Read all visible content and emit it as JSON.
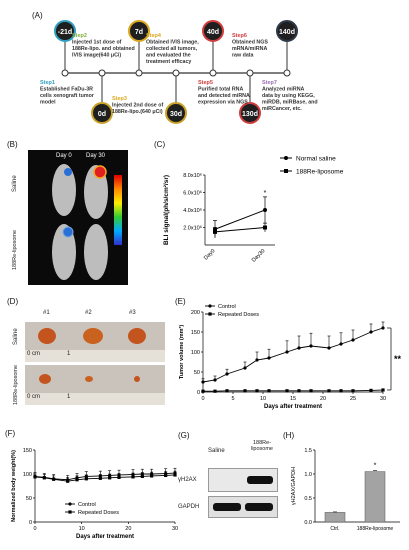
{
  "panel_labels": {
    "a": "(A)",
    "b": "(B)",
    "c": "(C)",
    "d": "(D)",
    "e": "(E)",
    "f": "(F)",
    "g": "(G)",
    "h": "(H)"
  },
  "timeline": {
    "milestones": [
      {
        "day": "-21d",
        "color": "#2f9fbf",
        "pos": "top"
      },
      {
        "day": "0d",
        "color": "#c9a227",
        "pos": "bottom"
      },
      {
        "day": "7d",
        "color": "#d9a820",
        "pos": "top"
      },
      {
        "day": "30d",
        "color": "#c9a227",
        "pos": "bottom"
      },
      {
        "day": "40d",
        "color": "#cf3d3d",
        "pos": "top"
      },
      {
        "day": "130d",
        "color": "#cf3d3d",
        "pos": "bottom"
      },
      {
        "day": "140d",
        "color": "#2f3a4a",
        "pos": "top"
      }
    ],
    "steps": [
      {
        "title": "Step1",
        "color": "#2f9fbf",
        "lines": [
          "Established FaDu-3R",
          "cells xenograft tumor",
          "model"
        ]
      },
      {
        "title": "Step2",
        "color": "#7fae3a",
        "lines": [
          "Injected 1st dose of",
          "188Re-lipo. and obtained",
          "IVIS image(640 μCi)"
        ]
      },
      {
        "title": "Step3",
        "color": "#d9a820",
        "lines": [
          "Injected 2nd dose of",
          "188Re-lipo.(640 μCi)"
        ]
      },
      {
        "title": "Step4",
        "color": "#d9a820",
        "lines": [
          "Obtained IVIS image,",
          "collected all tumors,",
          "and evaluated the",
          "treatment efficacy"
        ]
      },
      {
        "title": "Step5",
        "color": "#cf3d3d",
        "lines": [
          "Purified total RNA",
          "and detected miRNA",
          "expression via NGS"
        ]
      },
      {
        "title": "Step6",
        "color": "#cf3d3d",
        "lines": [
          "Obtained NGS",
          "mRNA/miRNA",
          "raw data"
        ]
      },
      {
        "title": "Step7",
        "color": "#9a6fb0",
        "lines": [
          "Analyzed miRNA",
          "data by using  KEGG,",
          "miRDB, miRBase, and",
          "miRCancer, etc."
        ]
      }
    ]
  },
  "panel_b": {
    "day0": "Day 0",
    "day30": "Day 30",
    "row1": "Saline",
    "row2": "188Re-liposome"
  },
  "panel_c": {
    "ylabel": "BLI signal(ph/s/cm²/sr)",
    "yticks": [
      "2.0x10⁶",
      "4.0x10⁶",
      "6.0x10⁶",
      "8.0x10⁶"
    ],
    "xticks": [
      "Day0",
      "Day30"
    ],
    "star": "*",
    "chart_data": {
      "type": "line",
      "x": [
        "Day0",
        "Day30"
      ],
      "ylim": [
        0,
        8000000
      ],
      "series": [
        {
          "name": "Normal saline",
          "values": [
            1800000,
            4000000
          ],
          "errors": [
            1000000,
            1500000
          ]
        },
        {
          "name": "188Re-liposome",
          "values": [
            1500000,
            2000000
          ],
          "errors": [
            500000,
            500000
          ]
        }
      ]
    }
  },
  "panel_d": {
    "cols": [
      "#1",
      "#2",
      "#3"
    ],
    "row1": "Saline",
    "row2": "188Re-liposome",
    "ruler": "0 cm",
    "ruler_end": "1"
  },
  "panel_e": {
    "ylabel": "Tumor volume (mm³)",
    "xlabel": "Days after treatment",
    "yticks": [
      "0",
      "50",
      "100",
      "150",
      "200"
    ],
    "xticks": [
      "0",
      "5",
      "10",
      "15",
      "20",
      "25",
      "30"
    ],
    "sig": "**",
    "chart_data": {
      "type": "line",
      "ylim": [
        0,
        200
      ],
      "x": [
        0,
        2,
        4,
        7,
        9,
        11,
        14,
        16,
        18,
        21,
        23,
        25,
        28,
        30
      ],
      "series": [
        {
          "name": "Control",
          "values": [
            25,
            30,
            45,
            60,
            80,
            85,
            100,
            110,
            115,
            110,
            120,
            130,
            150,
            160
          ],
          "errors": [
            8,
            10,
            12,
            15,
            20,
            22,
            28,
            30,
            32,
            30,
            28,
            25,
            20,
            15
          ]
        },
        {
          "name": "Repeated Doses",
          "values": [
            2,
            2,
            3,
            3,
            3,
            3,
            3,
            3,
            3,
            3,
            3,
            3,
            4,
            5
          ],
          "errors": [
            1,
            1,
            1,
            1,
            1,
            1,
            1,
            1,
            1,
            1,
            1,
            1,
            2,
            2
          ]
        }
      ]
    }
  },
  "panel_f": {
    "ylabel": "Normalized body weight(%)",
    "xlabel": "Days after treatment",
    "yticks": [
      "0",
      "50",
      "100",
      "150"
    ],
    "xticks": [
      "0",
      "10",
      "20",
      "30"
    ],
    "chart_data": {
      "type": "line",
      "ylim": [
        0,
        150
      ],
      "x": [
        0,
        2,
        4,
        7,
        9,
        11,
        14,
        16,
        18,
        21,
        23,
        25,
        28,
        30
      ],
      "series": [
        {
          "name": "Control",
          "values": [
            95,
            93,
            90,
            88,
            92,
            95,
            96,
            97,
            98,
            99,
            100,
            100,
            101,
            102
          ],
          "errors": [
            8,
            8,
            9,
            9,
            9,
            10,
            10,
            10,
            10,
            10,
            10,
            10,
            10,
            10
          ]
        },
        {
          "name": "Repeated Doses",
          "values": [
            94,
            92,
            89,
            85,
            88,
            90,
            91,
            92,
            93,
            94,
            95,
            96,
            97,
            98
          ],
          "errors": [
            6,
            7,
            7,
            8,
            8,
            8,
            8,
            8,
            8,
            8,
            8,
            8,
            8,
            8
          ]
        }
      ]
    }
  },
  "panel_g": {
    "col1": "Saline",
    "col2": "188Re-liposome",
    "row1": "γH2AX",
    "row2": "GAPDH"
  },
  "panel_h": {
    "ylabel": "γH2AX/GAPDH",
    "yticks": [
      "0.0",
      "0.5",
      "1.0",
      "1.5"
    ],
    "star": "*",
    "chart_data": {
      "type": "bar",
      "categories": [
        "Ctrl.",
        "188Re-liposome"
      ],
      "values": [
        0.2,
        1.05
      ],
      "errors": [
        0.01,
        0.02
      ],
      "ylim": [
        0,
        1.5
      ]
    }
  }
}
